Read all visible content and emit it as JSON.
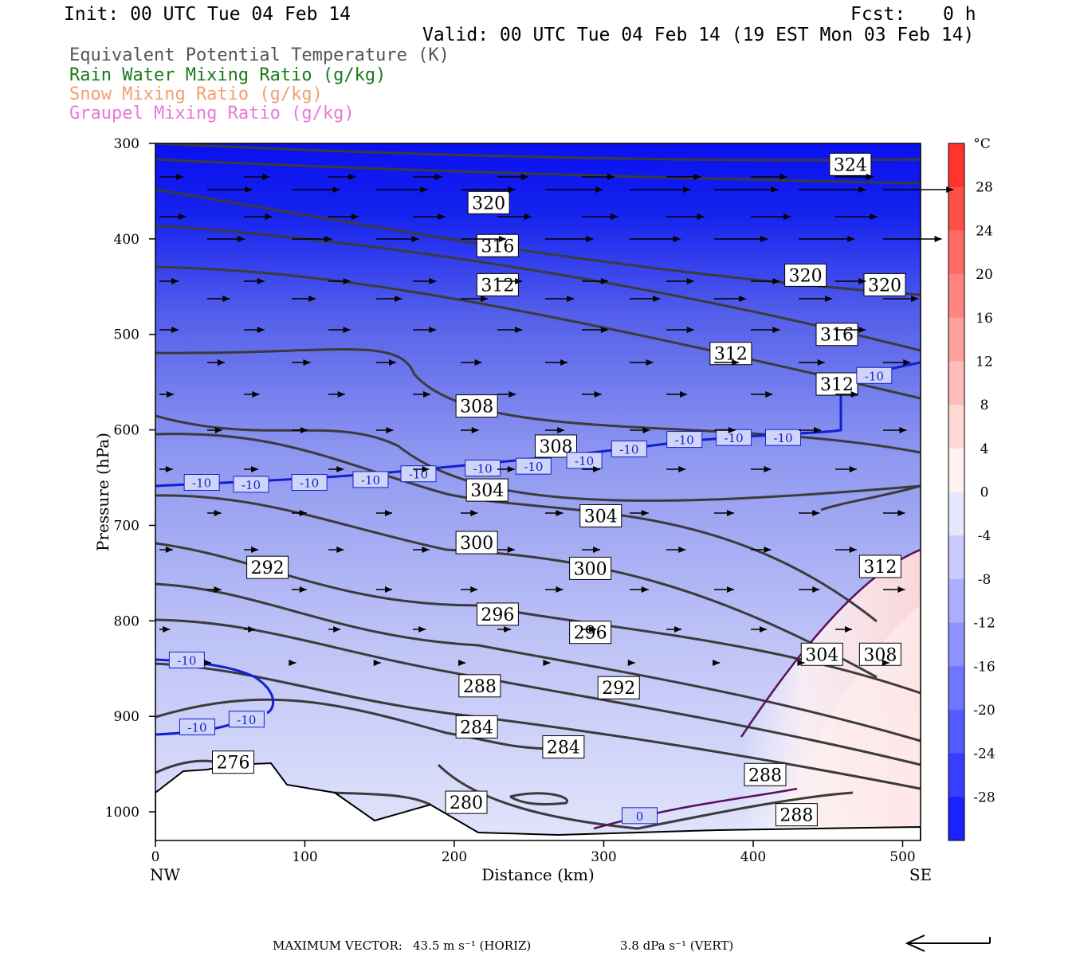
{
  "header": {
    "init": "Init: 00 UTC Tue 04 Feb 14",
    "fcst_label": "Fcst:",
    "fcst_value": "0 h",
    "valid": "Valid: 00 UTC Tue 04 Feb 14 (19 EST Mon 03 Feb 14)"
  },
  "legend": [
    {
      "text": "Equivalent Potential Temperature (K)",
      "color": "#555555"
    },
    {
      "text": "Rain Water Mixing Ratio (g/kg)",
      "color": "#1a7a1a"
    },
    {
      "text": "Snow Mixing Ratio (g/kg)",
      "color": "#f2a070"
    },
    {
      "text": "Graupel Mixing Ratio (g/kg)",
      "color": "#e87ad8"
    }
  ],
  "footer": {
    "max_vector_label": "MAXIMUM VECTOR:",
    "horiz": "43.5 m s⁻¹ (HORIZ)",
    "vert": "3.8 dPa s⁻¹ (VERT)"
  },
  "chart_data": {
    "type": "heatmap",
    "description_of_fields": [
      "temperature shading (°C)",
      "equivalent potential temperature contours (K)",
      "-10 °C isotherm",
      "0 °C isotherm",
      "wind vectors"
    ],
    "xlabel": "Distance (km)",
    "ylabel": "Pressure (hPa)",
    "xlim": [
      0,
      512
    ],
    "ylim": [
      1030,
      300
    ],
    "x_ticks": [
      0,
      100,
      200,
      300,
      400,
      500
    ],
    "y_ticks": [
      300,
      400,
      500,
      600,
      700,
      800,
      900,
      1000
    ],
    "x_end_labels": {
      "left": "NW",
      "right": "SE"
    },
    "colorbar": {
      "unit": "°C",
      "ticks": [
        28,
        24,
        20,
        16,
        12,
        8,
        4,
        0,
        -4,
        -8,
        -12,
        -16,
        -20,
        -24,
        -28
      ],
      "range": [
        -32,
        32
      ]
    },
    "contour_labels": [
      {
        "v": "324",
        "x": 465,
        "p": 322
      },
      {
        "v": "320",
        "x": 223,
        "p": 362
      },
      {
        "v": "316",
        "x": 229,
        "p": 407
      },
      {
        "v": "312",
        "x": 229,
        "p": 448
      },
      {
        "v": "320",
        "x": 435,
        "p": 438
      },
      {
        "v": "320",
        "x": 488,
        "p": 448
      },
      {
        "v": "316",
        "x": 456,
        "p": 500
      },
      {
        "v": "312",
        "x": 385,
        "p": 520
      },
      {
        "v": "312",
        "x": 456,
        "p": 552
      },
      {
        "v": "308",
        "x": 215,
        "p": 575
      },
      {
        "v": "308",
        "x": 268,
        "p": 617
      },
      {
        "v": "304",
        "x": 222,
        "p": 663
      },
      {
        "v": "304",
        "x": 298,
        "p": 690
      },
      {
        "v": "300",
        "x": 215,
        "p": 718
      },
      {
        "v": "300",
        "x": 291,
        "p": 745
      },
      {
        "v": "292",
        "x": 75,
        "p": 744
      },
      {
        "v": "296",
        "x": 229,
        "p": 793
      },
      {
        "v": "296",
        "x": 291,
        "p": 812
      },
      {
        "v": "312",
        "x": 485,
        "p": 743
      },
      {
        "v": "304",
        "x": 446,
        "p": 835
      },
      {
        "v": "308",
        "x": 485,
        "p": 835
      },
      {
        "v": "288",
        "x": 217,
        "p": 868
      },
      {
        "v": "292",
        "x": 310,
        "p": 870
      },
      {
        "v": "284",
        "x": 215,
        "p": 911
      },
      {
        "v": "284",
        "x": 273,
        "p": 932
      },
      {
        "v": "276",
        "x": 52,
        "p": 948
      },
      {
        "v": "288",
        "x": 408,
        "p": 961
      },
      {
        "v": "280",
        "x": 208,
        "p": 990
      },
      {
        "v": "288",
        "x": 429,
        "p": 1003
      }
    ],
    "isotherm_labels": [
      {
        "v": "-10",
        "x": 31,
        "p": 655
      },
      {
        "v": "-10",
        "x": 64,
        "p": 657
      },
      {
        "v": "-10",
        "x": 103,
        "p": 655
      },
      {
        "v": "-10",
        "x": 144,
        "p": 652
      },
      {
        "v": "-10",
        "x": 176,
        "p": 646
      },
      {
        "v": "-10",
        "x": 219,
        "p": 640
      },
      {
        "v": "-10",
        "x": 253,
        "p": 638
      },
      {
        "v": "-10",
        "x": 287,
        "p": 632
      },
      {
        "v": "-10",
        "x": 317,
        "p": 620
      },
      {
        "v": "-10",
        "x": 354,
        "p": 610
      },
      {
        "v": "-10",
        "x": 387,
        "p": 608
      },
      {
        "v": "-10",
        "x": 420,
        "p": 608
      },
      {
        "v": "-10",
        "x": 481,
        "p": 543
      },
      {
        "v": "-10",
        "x": 21,
        "p": 841
      },
      {
        "v": "-10",
        "x": 28,
        "p": 911
      },
      {
        "v": "-10",
        "x": 61,
        "p": 903
      },
      {
        "v": "0",
        "x": 324,
        "p": 1004
      }
    ]
  }
}
